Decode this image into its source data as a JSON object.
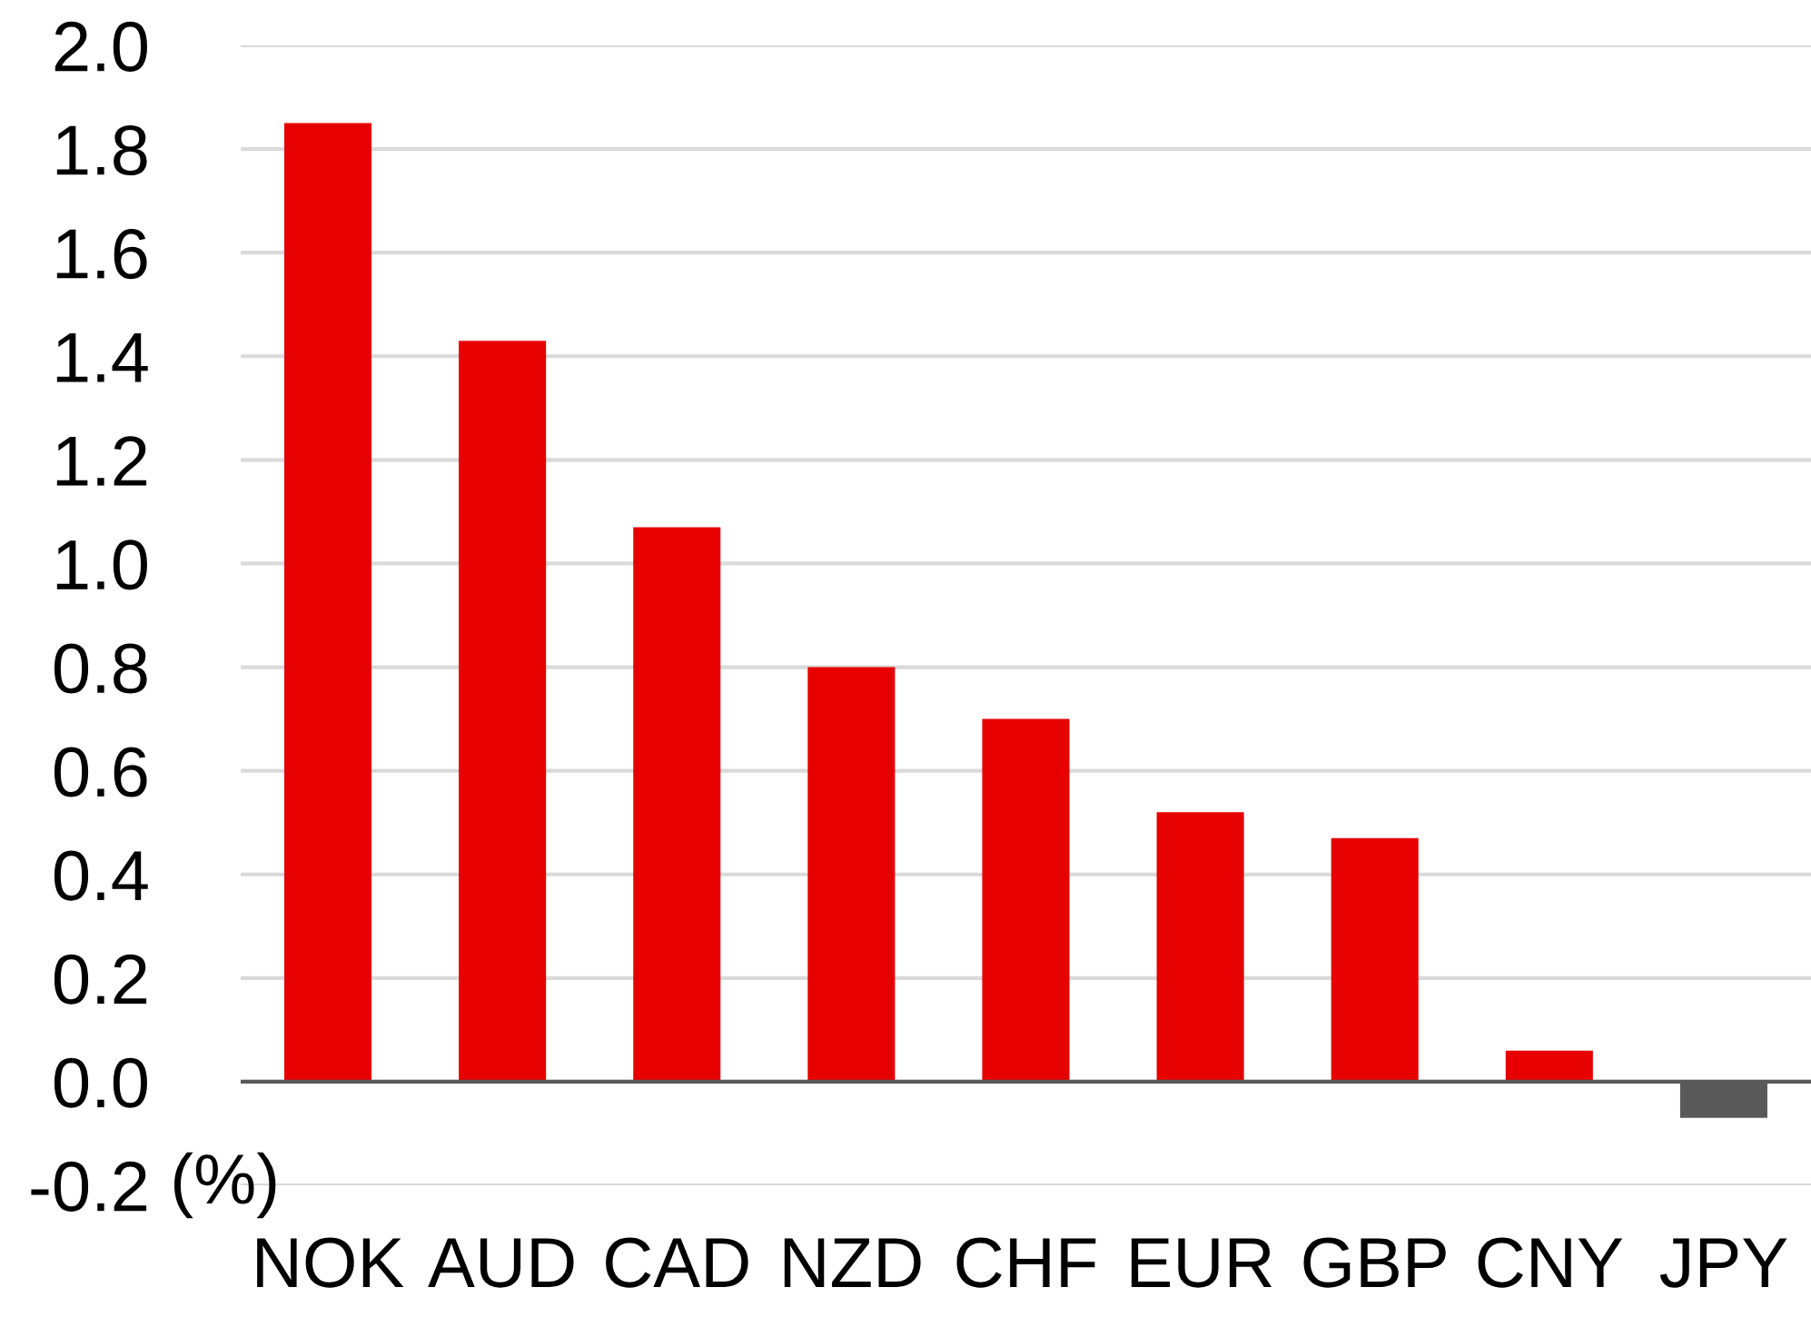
{
  "chart_data": {
    "type": "bar",
    "categories": [
      "NOK",
      "AUD",
      "CAD",
      "NZD",
      "CHF",
      "EUR",
      "GBP",
      "CNY",
      "JPY"
    ],
    "values": [
      1.85,
      1.43,
      1.07,
      0.8,
      0.7,
      0.52,
      0.47,
      0.06,
      -0.07
    ],
    "colors": [
      "#e60000",
      "#e60000",
      "#e60000",
      "#e60000",
      "#e60000",
      "#e60000",
      "#e60000",
      "#e60000",
      "#595959"
    ],
    "ylim": [
      -0.2,
      2.0
    ],
    "yticks": [
      {
        "value": -0.2,
        "label": "-0.2"
      },
      {
        "value": 0,
        "label": "0.0"
      },
      {
        "value": 0.2,
        "label": "0.2"
      },
      {
        "value": 0.4,
        "label": "0.4"
      },
      {
        "value": 0.6,
        "label": "0.6"
      },
      {
        "value": 0.8,
        "label": "0.8"
      },
      {
        "value": 1.0,
        "label": "1.0"
      },
      {
        "value": 1.2,
        "label": "1.2"
      },
      {
        "value": 1.4,
        "label": "1.4"
      },
      {
        "value": 1.6,
        "label": "1.6"
      },
      {
        "value": 1.8,
        "label": "1.8"
      },
      {
        "value": 2.0,
        "label": "2.0"
      }
    ],
    "grid": "y",
    "ref_lines": [
      {
        "axis": "y",
        "value": 0,
        "color": "#595959"
      }
    ],
    "annotations": [
      "(%)"
    ]
  }
}
